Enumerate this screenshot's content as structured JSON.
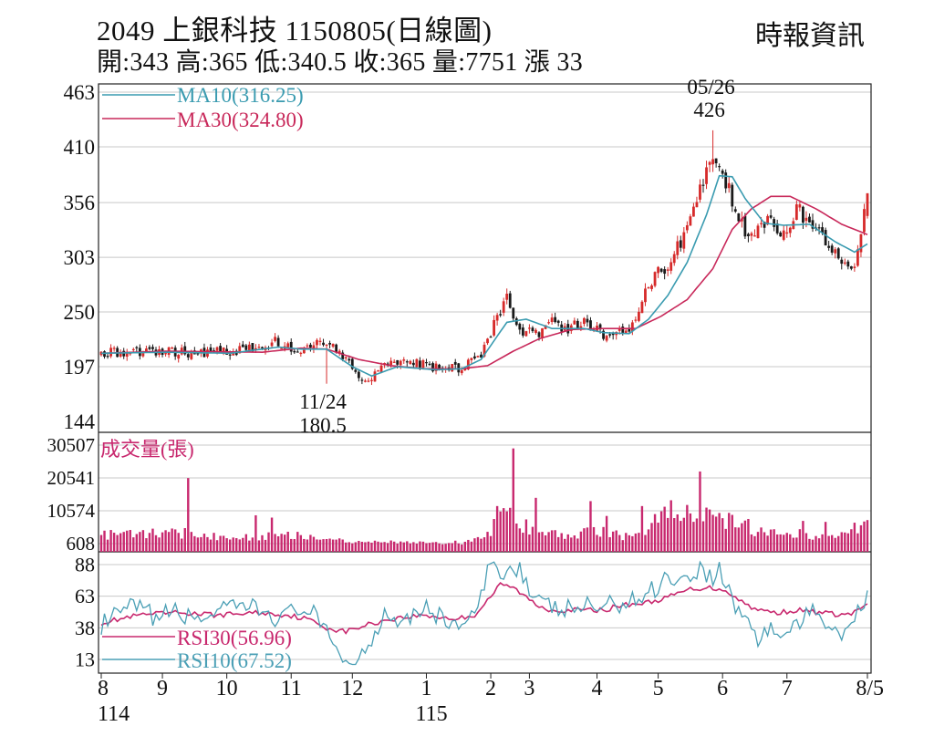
{
  "header": {
    "title": "2049 上銀科技 1150805(日線圖)",
    "source": "時報資訊",
    "quote": "開:343 高:365 低:340.5 收:365 量:7751 漲 33"
  },
  "colors": {
    "up": "#d62a2a",
    "down": "#1a1a1a",
    "ma10": "#3a9bb0",
    "ma30": "#c8285a",
    "volume": "#c8286e",
    "rsi30": "#c8286e",
    "rsi10": "#4a9fb5",
    "grid": "#c8c8c8"
  },
  "chart_data": [
    {
      "type": "candlestick",
      "panel": "price",
      "y_ticks": [
        463,
        410,
        356,
        303,
        250,
        197,
        144
      ],
      "ylim": [
        144,
        463
      ],
      "legend": [
        {
          "key": "ma10",
          "label": "MA10(316.25)"
        },
        {
          "key": "ma30",
          "label": "MA30(324.80)"
        }
      ],
      "annotations": [
        {
          "id": "high",
          "date": "05/26",
          "value": "426",
          "index": 190,
          "at": 426
        },
        {
          "id": "low",
          "date": "11/24",
          "value": "180.5",
          "index": 70,
          "at": 180.5
        }
      ],
      "last": {
        "open": 343,
        "high": 365,
        "low": 340.5,
        "close": 365
      },
      "anchors": [
        [
          0,
          210
        ],
        [
          12,
          212
        ],
        [
          22,
          211
        ],
        [
          30,
          210
        ],
        [
          42,
          213
        ],
        [
          54,
          221
        ],
        [
          60,
          212
        ],
        [
          70,
          221
        ],
        [
          76,
          204
        ],
        [
          82,
          183
        ],
        [
          88,
          198
        ],
        [
          96,
          203
        ],
        [
          104,
          196
        ],
        [
          112,
          195
        ],
        [
          118,
          210
        ],
        [
          122,
          238
        ],
        [
          126,
          262
        ],
        [
          130,
          232
        ],
        [
          136,
          230
        ],
        [
          140,
          247
        ],
        [
          144,
          232
        ],
        [
          150,
          242
        ],
        [
          156,
          228
        ],
        [
          160,
          232
        ],
        [
          164,
          233
        ],
        [
          168,
          262
        ],
        [
          172,
          285
        ],
        [
          176,
          295
        ],
        [
          180,
          318
        ],
        [
          186,
          372
        ],
        [
          190,
          400
        ],
        [
          194,
          378
        ],
        [
          198,
          338
        ],
        [
          202,
          322
        ],
        [
          208,
          342
        ],
        [
          212,
          322
        ],
        [
          216,
          350
        ],
        [
          222,
          330
        ],
        [
          226,
          318
        ],
        [
          230,
          300
        ],
        [
          234,
          296
        ],
        [
          236,
          330
        ],
        [
          238,
          365
        ]
      ],
      "ma10_anchors": [
        [
          0,
          210
        ],
        [
          20,
          211
        ],
        [
          40,
          210
        ],
        [
          55,
          216
        ],
        [
          62,
          214
        ],
        [
          70,
          214
        ],
        [
          78,
          197
        ],
        [
          84,
          188
        ],
        [
          92,
          197
        ],
        [
          104,
          194
        ],
        [
          112,
          195
        ],
        [
          118,
          204
        ],
        [
          126,
          240
        ],
        [
          132,
          243
        ],
        [
          140,
          234
        ],
        [
          150,
          234
        ],
        [
          156,
          230
        ],
        [
          164,
          229
        ],
        [
          170,
          243
        ],
        [
          176,
          266
        ],
        [
          182,
          298
        ],
        [
          188,
          344
        ],
        [
          192,
          382
        ],
        [
          196,
          381
        ],
        [
          200,
          360
        ],
        [
          206,
          336
        ],
        [
          212,
          334
        ],
        [
          220,
          335
        ],
        [
          228,
          318
        ],
        [
          234,
          308
        ],
        [
          238,
          316
        ]
      ],
      "ma30_anchors": [
        [
          0,
          210
        ],
        [
          20,
          212
        ],
        [
          50,
          211
        ],
        [
          62,
          215
        ],
        [
          70,
          214
        ],
        [
          80,
          204
        ],
        [
          90,
          198
        ],
        [
          100,
          195
        ],
        [
          112,
          195
        ],
        [
          120,
          198
        ],
        [
          128,
          212
        ],
        [
          136,
          224
        ],
        [
          146,
          233
        ],
        [
          156,
          234
        ],
        [
          166,
          234
        ],
        [
          174,
          246
        ],
        [
          182,
          262
        ],
        [
          190,
          292
        ],
        [
          196,
          330
        ],
        [
          202,
          350
        ],
        [
          208,
          362
        ],
        [
          214,
          362
        ],
        [
          222,
          350
        ],
        [
          230,
          335
        ],
        [
          238,
          325
        ]
      ]
    },
    {
      "type": "bar",
      "panel": "volume",
      "title": "成交量(張)",
      "y_ticks": [
        30507,
        20541,
        10574,
        608
      ],
      "ylim": [
        608,
        30507
      ],
      "last_value": 7751,
      "spikes": [
        [
          27,
          20500
        ],
        [
          48,
          9200
        ],
        [
          53,
          8500
        ],
        [
          85,
          1500
        ],
        [
          104,
          1100
        ],
        [
          110,
          1500
        ],
        [
          123,
          12000
        ],
        [
          128,
          29500
        ],
        [
          135,
          14500
        ],
        [
          152,
          13500
        ],
        [
          157,
          9000
        ],
        [
          168,
          12000
        ],
        [
          175,
          11800
        ],
        [
          180,
          7500
        ],
        [
          186,
          22500
        ],
        [
          191,
          8800
        ],
        [
          199,
          6800
        ],
        [
          205,
          5500
        ],
        [
          218,
          7500
        ],
        [
          225,
          7200
        ]
      ],
      "bumps": [
        [
          0,
          4000
        ],
        [
          30,
          4500
        ],
        [
          40,
          2500
        ],
        [
          60,
          4000
        ],
        [
          70,
          2500
        ],
        [
          80,
          1200
        ],
        [
          90,
          1300
        ],
        [
          100,
          1000
        ],
        [
          112,
          600
        ],
        [
          118,
          3000
        ],
        [
          126,
          11000
        ],
        [
          132,
          6500
        ],
        [
          140,
          5000
        ],
        [
          148,
          4000
        ],
        [
          156,
          6000
        ],
        [
          162,
          3000
        ],
        [
          170,
          5500
        ],
        [
          176,
          13000
        ],
        [
          182,
          10000
        ],
        [
          188,
          9500
        ],
        [
          194,
          8500
        ],
        [
          200,
          7000
        ],
        [
          208,
          5000
        ],
        [
          214,
          4500
        ],
        [
          222,
          3500
        ],
        [
          230,
          3500
        ],
        [
          238,
          7751
        ]
      ]
    },
    {
      "type": "line",
      "panel": "rsi",
      "y_ticks": [
        88,
        63,
        38,
        13
      ],
      "ylim": [
        13,
        88
      ],
      "legend": [
        {
          "key": "rsi30",
          "label": "RSI30(56.96)"
        },
        {
          "key": "rsi10",
          "label": "RSI10(67.52)"
        }
      ],
      "rsi10_anchors": [
        [
          0,
          40
        ],
        [
          10,
          55
        ],
        [
          18,
          45
        ],
        [
          22,
          52
        ],
        [
          28,
          45
        ],
        [
          36,
          50
        ],
        [
          46,
          55
        ],
        [
          56,
          45
        ],
        [
          62,
          55
        ],
        [
          66,
          48
        ],
        [
          70,
          32
        ],
        [
          74,
          22
        ],
        [
          76,
          10
        ],
        [
          80,
          12
        ],
        [
          84,
          30
        ],
        [
          88,
          50
        ],
        [
          94,
          45
        ],
        [
          100,
          55
        ],
        [
          106,
          45
        ],
        [
          112,
          40
        ],
        [
          116,
          46
        ],
        [
          120,
          80
        ],
        [
          122,
          88
        ],
        [
          126,
          82
        ],
        [
          130,
          88
        ],
        [
          134,
          60
        ],
        [
          138,
          55
        ],
        [
          144,
          52
        ],
        [
          150,
          55
        ],
        [
          156,
          55
        ],
        [
          162,
          58
        ],
        [
          168,
          62
        ],
        [
          172,
          70
        ],
        [
          176,
          80
        ],
        [
          180,
          75
        ],
        [
          186,
          85
        ],
        [
          190,
          78
        ],
        [
          192,
          86
        ],
        [
          196,
          60
        ],
        [
          200,
          45
        ],
        [
          204,
          30
        ],
        [
          208,
          38
        ],
        [
          212,
          30
        ],
        [
          216,
          42
        ],
        [
          222,
          50
        ],
        [
          226,
          42
        ],
        [
          230,
          35
        ],
        [
          234,
          45
        ],
        [
          236,
          55
        ],
        [
          238,
          67.52
        ]
      ],
      "rsi30_anchors": [
        [
          0,
          42
        ],
        [
          12,
          48
        ],
        [
          24,
          50
        ],
        [
          36,
          48
        ],
        [
          48,
          50
        ],
        [
          58,
          48
        ],
        [
          64,
          45
        ],
        [
          70,
          38
        ],
        [
          76,
          35
        ],
        [
          82,
          40
        ],
        [
          90,
          45
        ],
        [
          100,
          48
        ],
        [
          110,
          45
        ],
        [
          116,
          48
        ],
        [
          120,
          60
        ],
        [
          124,
          72
        ],
        [
          128,
          70
        ],
        [
          132,
          62
        ],
        [
          136,
          55
        ],
        [
          140,
          52
        ],
        [
          150,
          52
        ],
        [
          156,
          52
        ],
        [
          162,
          56
        ],
        [
          170,
          58
        ],
        [
          176,
          62
        ],
        [
          182,
          68
        ],
        [
          188,
          70
        ],
        [
          194,
          68
        ],
        [
          198,
          60
        ],
        [
          204,
          52
        ],
        [
          210,
          50
        ],
        [
          216,
          52
        ],
        [
          224,
          50
        ],
        [
          230,
          48
        ],
        [
          234,
          50
        ],
        [
          238,
          56.96
        ]
      ]
    }
  ],
  "x_axis": {
    "ticks": [
      {
        "label": "8",
        "index": 0
      },
      {
        "label": "9",
        "index": 19
      },
      {
        "label": "10",
        "index": 39
      },
      {
        "label": "11",
        "index": 59
      },
      {
        "label": "12",
        "index": 78
      },
      {
        "label": "1",
        "index": 101
      },
      {
        "label": "2",
        "index": 121
      },
      {
        "label": "3",
        "index": 133
      },
      {
        "label": "4",
        "index": 154
      },
      {
        "label": "5",
        "index": 173
      },
      {
        "label": "6",
        "index": 193
      },
      {
        "label": "7",
        "index": 213
      },
      {
        "label": "8/5",
        "index": 238
      }
    ],
    "year_labels": [
      {
        "label": "114",
        "index": 0
      },
      {
        "label": "115",
        "index": 101
      }
    ]
  }
}
